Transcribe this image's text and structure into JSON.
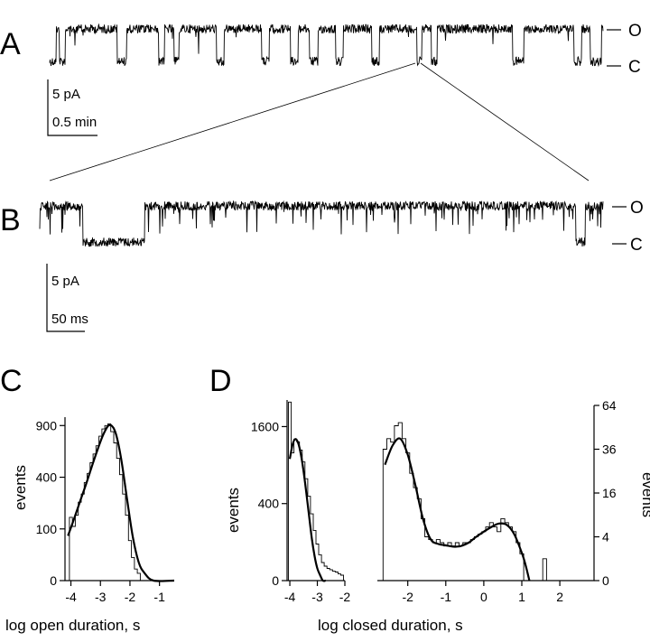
{
  "panels": {
    "A": {
      "letter": "A",
      "open_label": "O",
      "closed_label": "C",
      "scale_current": "5 pA",
      "scale_time": "0.5 min"
    },
    "B": {
      "letter": "B",
      "open_label": "O",
      "closed_label": "C",
      "scale_current": "5 pA",
      "scale_time": "50 ms"
    },
    "C": {
      "letter": "C",
      "ylabel": "events",
      "xlabel": "log open duration, s",
      "yticks": [
        "900",
        "400",
        "100",
        "0"
      ],
      "xticks": [
        "-4",
        "-3",
        "-2",
        "-1"
      ]
    },
    "D": {
      "letter": "D",
      "ylabel_left": "events",
      "ylabel_right": "events",
      "xlabel": "log closed duration, s",
      "yticks_left": [
        "1600",
        "400",
        "0"
      ],
      "xticks_left": [
        "-4",
        "-3",
        "-2"
      ],
      "yticks_right": [
        "64",
        "36",
        "16",
        "4",
        "0"
      ],
      "xticks_right": [
        "-2",
        "-1",
        "0",
        "1",
        "2"
      ]
    }
  },
  "chart_data": [
    {
      "type": "bar",
      "panel": "C",
      "xlabel": "log open duration, s",
      "ylabel": "events",
      "scale": "sqrt",
      "xlim": [
        -4.2,
        -0.5
      ],
      "ylim": [
        0,
        1000
      ],
      "hist_x": [
        -4.1,
        -4.0,
        -3.9,
        -3.8,
        -3.7,
        -3.6,
        -3.5,
        -3.4,
        -3.3,
        -3.2,
        -3.1,
        -3.0,
        -2.9,
        -2.8,
        -2.7,
        -2.6,
        -2.5,
        -2.4,
        -2.3,
        -2.2,
        -2.1,
        -2.0,
        -1.9,
        -1.8,
        -1.7,
        -1.6
      ],
      "hist_y": [
        0,
        150,
        110,
        160,
        230,
        280,
        360,
        430,
        520,
        600,
        680,
        780,
        860,
        900,
        920,
        830,
        710,
        560,
        420,
        280,
        160,
        60,
        20,
        5,
        2,
        0
      ],
      "fit_x": [
        -4.1,
        -3.9,
        -3.7,
        -3.5,
        -3.3,
        -3.1,
        -2.9,
        -2.7,
        -2.5,
        -2.3,
        -2.1,
        -1.9,
        -1.7,
        -1.5,
        -1.2,
        -0.5
      ],
      "fit_y": [
        75,
        140,
        230,
        340,
        480,
        640,
        800,
        905,
        830,
        560,
        250,
        70,
        12,
        2,
        0,
        0
      ]
    },
    {
      "type": "bar",
      "panel": "D-left",
      "xlabel": "log closed duration, s",
      "ylabel": "events",
      "scale": "sqrt",
      "xlim": [
        -4.1,
        -2.0
      ],
      "ylim": [
        0,
        2200
      ],
      "hist_x": [
        -4.0,
        -3.9,
        -3.8,
        -3.7,
        -3.6,
        -3.5,
        -3.4,
        -3.3,
        -3.2,
        -3.1,
        -3.0,
        -2.9,
        -2.8,
        -2.7,
        -2.6,
        -2.5,
        -2.4,
        -2.3,
        -2.2,
        -2.1
      ],
      "hist_y": [
        2150,
        1100,
        1350,
        1300,
        1150,
        950,
        700,
        480,
        300,
        170,
        90,
        45,
        22,
        14,
        10,
        8,
        6,
        5,
        3,
        2
      ],
      "fit_x": [
        -4.0,
        -3.9,
        -3.8,
        -3.7,
        -3.6,
        -3.5,
        -3.4,
        -3.3,
        -3.2,
        -3.1,
        -3.0,
        -2.9,
        -2.8,
        -2.7
      ],
      "fit_y": [
        1000,
        1250,
        1350,
        1280,
        1080,
        800,
        520,
        280,
        120,
        40,
        10,
        2,
        0,
        0
      ]
    },
    {
      "type": "bar",
      "panel": "D-right",
      "xlabel": "log closed duration, s",
      "ylabel": "events",
      "scale": "sqrt",
      "xlim": [
        -2.8,
        2.9
      ],
      "ylim": [
        0,
        64
      ],
      "hist_x": [
        -2.6,
        -2.5,
        -2.4,
        -2.3,
        -2.2,
        -2.1,
        -2.0,
        -1.9,
        -1.8,
        -1.7,
        -1.6,
        -1.5,
        -1.4,
        -1.3,
        -1.2,
        -1.1,
        -1.0,
        -0.9,
        -0.8,
        -0.7,
        -0.6,
        -0.5,
        -0.4,
        -0.3,
        -0.2,
        -0.1,
        0.0,
        0.1,
        0.2,
        0.3,
        0.4,
        0.5,
        0.6,
        0.7,
        0.8,
        0.9,
        1.0,
        1.1,
        1.2,
        1.3,
        1.4,
        1.5,
        1.6,
        1.7,
        1.8
      ],
      "hist_y": [
        36,
        42,
        40,
        50,
        52,
        42,
        34,
        24,
        18,
        14,
        8,
        4,
        3.5,
        3,
        3.5,
        3,
        2.5,
        3,
        2.5,
        3,
        2.5,
        3,
        3,
        3.5,
        4,
        4.5,
        5,
        6,
        7,
        6,
        5,
        8,
        7,
        6,
        5,
        3,
        1.5,
        0,
        0,
        0,
        0,
        0,
        1,
        0,
        0
      ],
      "fit_x": [
        -2.6,
        -2.4,
        -2.2,
        -2.0,
        -1.8,
        -1.6,
        -1.4,
        -1.2,
        -1.0,
        -0.8,
        -0.6,
        -0.4,
        -0.2,
        0.0,
        0.2,
        0.4,
        0.6,
        0.8,
        1.0,
        1.1,
        1.2
      ],
      "fit_y": [
        28,
        38,
        42,
        33,
        19,
        8,
        3.6,
        2.8,
        2.6,
        2.4,
        2.5,
        3.0,
        4.0,
        5.0,
        6.0,
        6.8,
        6.5,
        4.5,
        1.6,
        0.5,
        0
      ]
    }
  ]
}
